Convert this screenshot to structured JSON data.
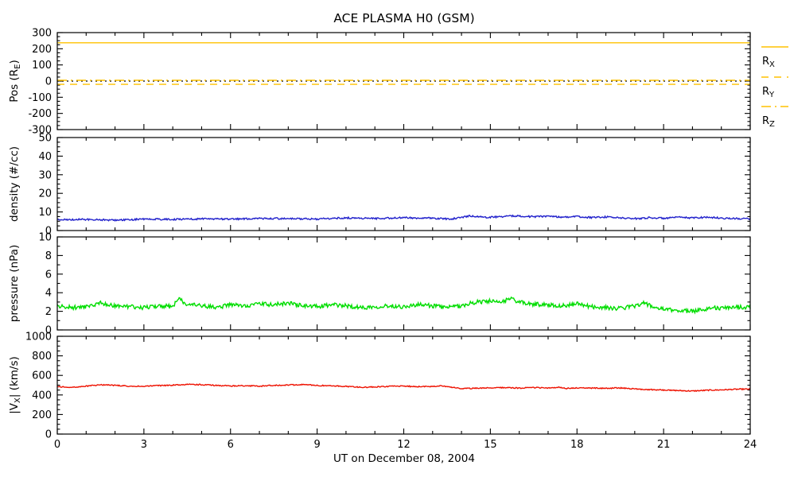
{
  "title": "ACE PLASMA H0 (GSM)",
  "xlabel": "UT on December 08, 2004",
  "colors": {
    "background": "#ffffff",
    "axis": "#000000",
    "position": "#FFC200",
    "density": "#2222CC",
    "pressure": "#00DD00",
    "velocity": "#EE1100"
  },
  "x_axis": {
    "min": 0,
    "max": 24,
    "major_ticks": [
      0,
      3,
      6,
      9,
      12,
      15,
      18,
      21,
      24
    ],
    "minor_step": 1
  },
  "legend": {
    "entries": [
      {
        "pre": "R",
        "sub": "X",
        "style": "solid"
      },
      {
        "pre": "R",
        "sub": "Y",
        "style": "dashed"
      },
      {
        "pre": "R",
        "sub": "Z",
        "style": "dashdot"
      }
    ]
  },
  "chart_data": [
    {
      "id": "position",
      "type": "line",
      "ylabel": {
        "pre": "Pos (R",
        "sub": "E",
        "post": ")"
      },
      "ylim": [
        -300,
        300
      ],
      "yticks": [
        -300,
        -200,
        -100,
        0,
        100,
        200,
        300
      ],
      "yminor_step": 25,
      "grid": false,
      "series": [
        {
          "name": "zero-reference",
          "color": "#000000",
          "style": "dotted",
          "width": 1.2,
          "noise": 0,
          "seed": 1,
          "anchors": [
            [
              0,
              0
            ],
            [
              24,
              0
            ]
          ]
        },
        {
          "name": "R_X",
          "color": "#FFC200",
          "style": "solid",
          "width": 1.4,
          "noise": 0,
          "seed": 2,
          "anchors": [
            [
              0,
              237
            ],
            [
              24,
              237
            ]
          ]
        },
        {
          "name": "R_Y",
          "color": "#FFC200",
          "style": "dashed",
          "width": 1.4,
          "noise": 0,
          "seed": 3,
          "anchors": [
            [
              0,
              -20
            ],
            [
              24,
              -20
            ]
          ]
        },
        {
          "name": "R_Z",
          "color": "#FFC200",
          "style": "dashdot",
          "width": 1.4,
          "noise": 0,
          "seed": 4,
          "anchors": [
            [
              0,
              5
            ],
            [
              24,
              5
            ]
          ]
        }
      ]
    },
    {
      "id": "density",
      "type": "line",
      "ylabel": {
        "pre": "density (#/cc)",
        "sub": "",
        "post": ""
      },
      "ylim": [
        0,
        50
      ],
      "yticks": [
        0,
        10,
        20,
        30,
        40,
        50
      ],
      "yminor_step": 2.5,
      "grid": false,
      "series": [
        {
          "name": "proton-density",
          "color": "#2222CC",
          "style": "solid",
          "width": 1.4,
          "noise": 0.45,
          "seed": 7,
          "anchors": [
            [
              0,
              5.8
            ],
            [
              1,
              6.0
            ],
            [
              2,
              5.6
            ],
            [
              3,
              6.2
            ],
            [
              4,
              6.0
            ],
            [
              5,
              6.3
            ],
            [
              6,
              6.1
            ],
            [
              7,
              6.6
            ],
            [
              8,
              6.4
            ],
            [
              9,
              6.2
            ],
            [
              10,
              6.8
            ],
            [
              11,
              6.5
            ],
            [
              12,
              6.9
            ],
            [
              13,
              6.6
            ],
            [
              13.6,
              6.2
            ],
            [
              14,
              7.0
            ],
            [
              14.3,
              8.0
            ],
            [
              14.7,
              7.2
            ],
            [
              15,
              7.2
            ],
            [
              15.5,
              7.6
            ],
            [
              16,
              7.9
            ],
            [
              16.5,
              7.4
            ],
            [
              17,
              7.8
            ],
            [
              17.5,
              7.2
            ],
            [
              18,
              7.5
            ],
            [
              18.5,
              7.0
            ],
            [
              19,
              7.3
            ],
            [
              19.5,
              6.8
            ],
            [
              20,
              6.4
            ],
            [
              20.5,
              6.9
            ],
            [
              21,
              6.6
            ],
            [
              21.5,
              7.1
            ],
            [
              22,
              6.8
            ],
            [
              22.5,
              7.2
            ],
            [
              23,
              6.7
            ],
            [
              23.5,
              6.4
            ],
            [
              24,
              6.3
            ]
          ]
        }
      ]
    },
    {
      "id": "pressure",
      "type": "line",
      "ylabel": {
        "pre": "pressure (nPa)",
        "sub": "",
        "post": ""
      },
      "ylim": [
        0,
        10
      ],
      "yticks": [
        0,
        2,
        4,
        6,
        8,
        10
      ],
      "yminor_step": 1,
      "grid": false,
      "series": [
        {
          "name": "flow-pressure",
          "color": "#00DD00",
          "style": "solid",
          "width": 1.4,
          "noise": 0.22,
          "seed": 13,
          "anchors": [
            [
              0,
              2.6
            ],
            [
              0.5,
              2.4
            ],
            [
              1,
              2.5
            ],
            [
              1.5,
              2.9
            ],
            [
              2,
              2.6
            ],
            [
              2.5,
              2.5
            ],
            [
              3,
              2.4
            ],
            [
              3.5,
              2.6
            ],
            [
              4,
              2.5
            ],
            [
              4.2,
              3.4
            ],
            [
              4.5,
              2.7
            ],
            [
              5,
              2.6
            ],
            [
              5.5,
              2.4
            ],
            [
              6,
              2.7
            ],
            [
              6.5,
              2.6
            ],
            [
              7,
              2.8
            ],
            [
              7.5,
              2.7
            ],
            [
              8,
              2.9
            ],
            [
              8.5,
              2.6
            ],
            [
              9,
              2.5
            ],
            [
              9.5,
              2.7
            ],
            [
              10,
              2.6
            ],
            [
              10.5,
              2.4
            ],
            [
              11,
              2.5
            ],
            [
              11.5,
              2.6
            ],
            [
              12,
              2.5
            ],
            [
              12.5,
              2.7
            ],
            [
              13,
              2.6
            ],
            [
              13.5,
              2.4
            ],
            [
              14,
              2.6
            ],
            [
              14.5,
              3.0
            ],
            [
              15,
              3.1
            ],
            [
              15.3,
              2.9
            ],
            [
              15.7,
              3.4
            ],
            [
              16,
              3.0
            ],
            [
              16.3,
              2.8
            ],
            [
              17,
              2.7
            ],
            [
              17.5,
              2.6
            ],
            [
              18,
              2.8
            ],
            [
              18.5,
              2.5
            ],
            [
              19,
              2.4
            ],
            [
              19.5,
              2.3
            ],
            [
              20,
              2.6
            ],
            [
              20.3,
              2.9
            ],
            [
              20.6,
              2.5
            ],
            [
              21,
              2.2
            ],
            [
              21.5,
              2.1
            ],
            [
              22,
              2.0
            ],
            [
              22.3,
              2.2
            ],
            [
              22.7,
              2.4
            ],
            [
              23,
              2.3
            ],
            [
              23.5,
              2.5
            ],
            [
              24,
              2.4
            ]
          ]
        }
      ]
    },
    {
      "id": "velocity",
      "type": "line",
      "ylabel": {
        "pre": "|V",
        "sub": "X",
        "post": "| (km/s)"
      },
      "ylim": [
        0,
        1000
      ],
      "yticks": [
        0,
        200,
        400,
        600,
        800,
        1000
      ],
      "yminor_step": 50,
      "grid": false,
      "series": [
        {
          "name": "vx-speed",
          "color": "#EE1100",
          "style": "solid",
          "width": 1.4,
          "noise": 5.5,
          "seed": 29,
          "anchors": [
            [
              0,
              485
            ],
            [
              0.5,
              478
            ],
            [
              1,
              490
            ],
            [
              1.5,
              505
            ],
            [
              2,
              498
            ],
            [
              2.5,
              490
            ],
            [
              3,
              488
            ],
            [
              3.5,
              495
            ],
            [
              4,
              500
            ],
            [
              4.5,
              508
            ],
            [
              5,
              505
            ],
            [
              5.5,
              498
            ],
            [
              6,
              492
            ],
            [
              6.5,
              495
            ],
            [
              7,
              490
            ],
            [
              7.5,
              498
            ],
            [
              8,
              502
            ],
            [
              8.5,
              505
            ],
            [
              9,
              498
            ],
            [
              9.5,
              492
            ],
            [
              10,
              488
            ],
            [
              10.5,
              478
            ],
            [
              11,
              482
            ],
            [
              11.5,
              488
            ],
            [
              12,
              490
            ],
            [
              12.5,
              485
            ],
            [
              13,
              488
            ],
            [
              13.3,
              495
            ],
            [
              13.6,
              480
            ],
            [
              14,
              465
            ],
            [
              14.5,
              468
            ],
            [
              15,
              472
            ],
            [
              15.5,
              476
            ],
            [
              16,
              470
            ],
            [
              16.5,
              475
            ],
            [
              17,
              472
            ],
            [
              17.4,
              478
            ],
            [
              17.6,
              466
            ],
            [
              18,
              472
            ],
            [
              18.5,
              470
            ],
            [
              19,
              468
            ],
            [
              19.5,
              472
            ],
            [
              20,
              462
            ],
            [
              20.5,
              455
            ],
            [
              21,
              450
            ],
            [
              21.5,
              445
            ],
            [
              22,
              440
            ],
            [
              22.5,
              448
            ],
            [
              23,
              452
            ],
            [
              23.5,
              458
            ],
            [
              24,
              460
            ]
          ]
        }
      ]
    }
  ]
}
